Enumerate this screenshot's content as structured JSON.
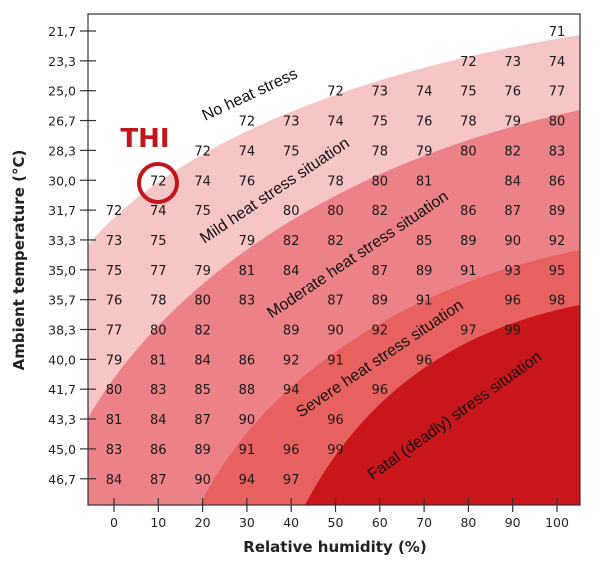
{
  "chart_data": {
    "type": "heatmap",
    "title": "",
    "xlabel": "Relative humidity (%)",
    "ylabel": "Ambient temperature (°C)",
    "x": [
      0,
      10,
      20,
      30,
      40,
      50,
      60,
      70,
      80,
      90,
      100
    ],
    "x_tick_labels": [
      "0",
      "10",
      "20",
      "30",
      "40",
      "50",
      "60",
      "70",
      "80",
      "90",
      "100"
    ],
    "y_tick_labels": [
      "21,7",
      "23,3",
      "25,0",
      "26,7",
      "28,3",
      "30,0",
      "31,7",
      "33,3",
      "35,0",
      "35,7",
      "38,3",
      "40,0",
      "41,7",
      "43,3",
      "45,0",
      "46,7"
    ],
    "values": [
      [
        null,
        null,
        null,
        null,
        null,
        null,
        null,
        null,
        null,
        null,
        71
      ],
      [
        null,
        null,
        null,
        null,
        null,
        null,
        null,
        null,
        72,
        73,
        74
      ],
      [
        null,
        null,
        null,
        null,
        null,
        72,
        73,
        74,
        75,
        76,
        77
      ],
      [
        null,
        null,
        null,
        72,
        73,
        74,
        75,
        76,
        78,
        79,
        80
      ],
      [
        null,
        null,
        72,
        74,
        75,
        null,
        78,
        79,
        80,
        82,
        83
      ],
      [
        null,
        72,
        74,
        76,
        null,
        78,
        80,
        81,
        null,
        84,
        86
      ],
      [
        72,
        74,
        75,
        null,
        80,
        80,
        82,
        null,
        86,
        87,
        89
      ],
      [
        73,
        75,
        null,
        79,
        82,
        82,
        null,
        85,
        89,
        90,
        92
      ],
      [
        75,
        77,
        79,
        81,
        84,
        null,
        87,
        89,
        91,
        93,
        95
      ],
      [
        76,
        78,
        80,
        83,
        null,
        87,
        89,
        91,
        null,
        96,
        98
      ],
      [
        77,
        80,
        82,
        null,
        89,
        90,
        92,
        null,
        97,
        99,
        null
      ],
      [
        79,
        81,
        84,
        86,
        92,
        91,
        null,
        96,
        null,
        null,
        null
      ],
      [
        80,
        83,
        85,
        88,
        94,
        null,
        96,
        null,
        null,
        null,
        null
      ],
      [
        81,
        84,
        87,
        90,
        null,
        96,
        null,
        null,
        null,
        null,
        null
      ],
      [
        83,
        86,
        89,
        91,
        96,
        99,
        null,
        null,
        null,
        null,
        null
      ],
      [
        84,
        87,
        90,
        94,
        97,
        null,
        null,
        null,
        null,
        null,
        null
      ]
    ],
    "zones": [
      {
        "label": "No heat stress",
        "color": "#ffffff"
      },
      {
        "label": "Mild heat stress situation",
        "color": "#f6c5c6"
      },
      {
        "label": "Moderate heat stress situation",
        "color": "#ec8188"
      },
      {
        "label": "Severe heat stress situation",
        "color": "#e7625f"
      },
      {
        "label": "Fatal (deadly) stress situation",
        "color": "#c8161b"
      }
    ],
    "annotation": {
      "label": "THI",
      "highlight_value": "72",
      "color": "#c0161b"
    },
    "grid": false
  }
}
